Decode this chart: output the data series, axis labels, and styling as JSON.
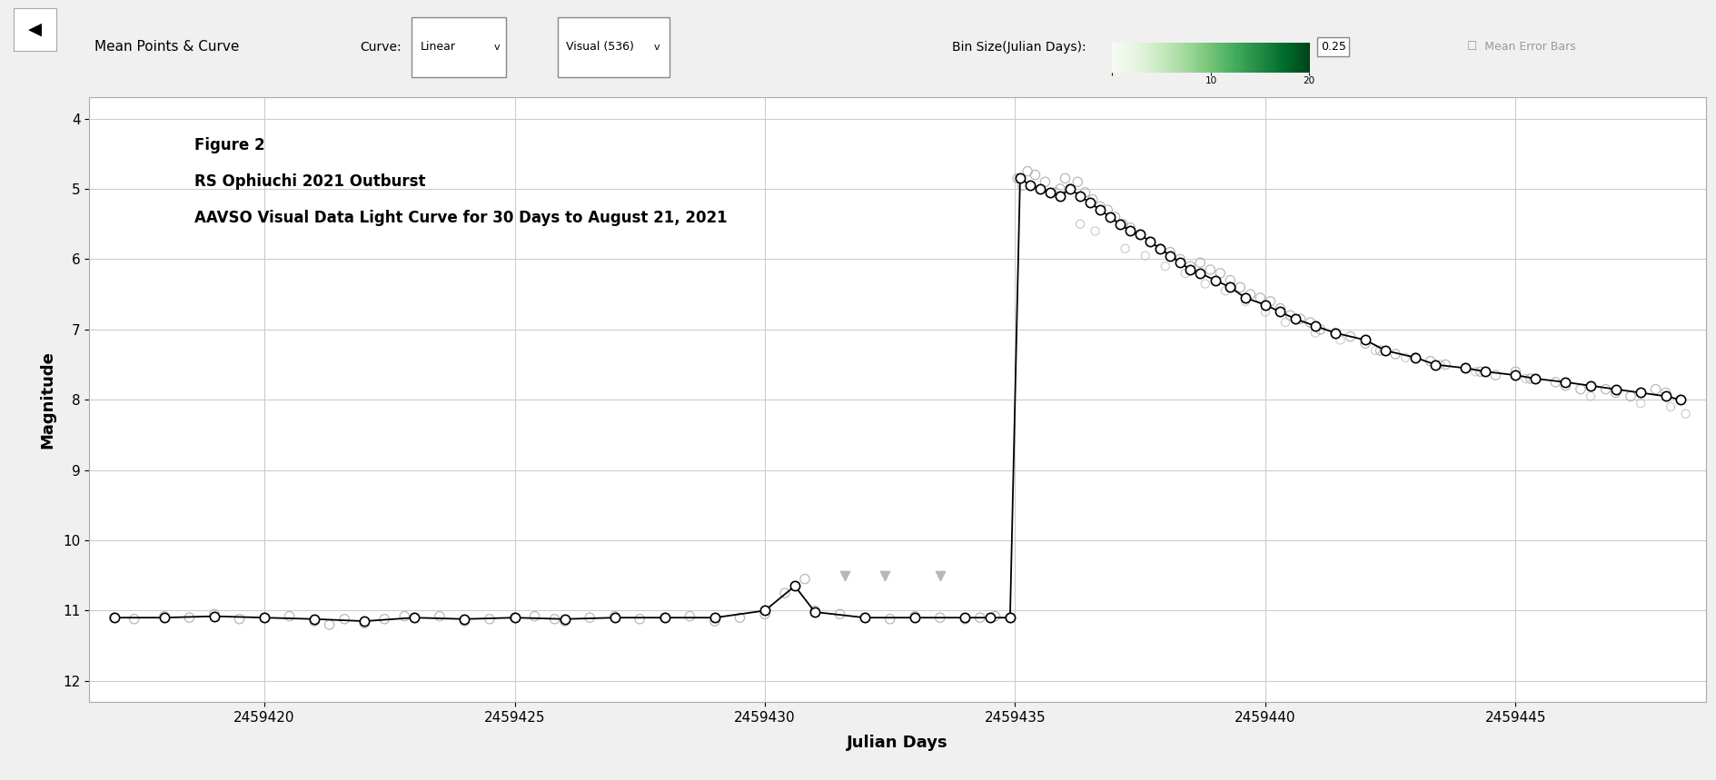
{
  "title_line1": "Figure 2",
  "title_line2": "RS Ophiuchi 2021 Outburst",
  "title_line3": "AAVSO Visual Data Light Curve for 30 Days to August 21, 2021",
  "xlabel": "Julian Days",
  "ylabel": "Magnitude",
  "xlim": [
    2459416.5,
    2459448.8
  ],
  "ylim": [
    12.3,
    3.7
  ],
  "xticks": [
    2459420,
    2459425,
    2459430,
    2459435,
    2459440,
    2459445
  ],
  "yticks": [
    4,
    5,
    6,
    7,
    8,
    9,
    10,
    11,
    12
  ],
  "background_color": "#f0f0f0",
  "plot_bg_color": "#ffffff",
  "grid_color": "#cccccc",
  "scatter_color": "#b8b8b8",
  "mean_line_color": "#000000",
  "mean_point_color": "#000000",
  "scatter_size": 55,
  "mean_size": 55,
  "figsize": [
    18.89,
    8.59
  ],
  "dpi": 100,
  "scatter_points": {
    "x": [
      2459417.0,
      2459417.4,
      2459418.0,
      2459418.5,
      2459419.0,
      2459419.5,
      2459420.0,
      2459420.5,
      2459421.0,
      2459421.3,
      2459421.6,
      2459422.0,
      2459422.4,
      2459422.8,
      2459423.0,
      2459423.5,
      2459424.0,
      2459424.5,
      2459425.0,
      2459425.4,
      2459425.8,
      2459426.0,
      2459426.5,
      2459427.0,
      2459427.5,
      2459428.0,
      2459428.5,
      2459429.0,
      2459429.5,
      2459430.0,
      2459430.4,
      2459430.8,
      2459431.0,
      2459431.5,
      2459432.0,
      2459432.5,
      2459433.0,
      2459433.5,
      2459434.0,
      2459434.3,
      2459434.6,
      2459434.9,
      2459435.05,
      2459435.15,
      2459435.25,
      2459435.4,
      2459435.6,
      2459435.8,
      2459435.9,
      2459436.0,
      2459436.1,
      2459436.25,
      2459436.4,
      2459436.55,
      2459436.7,
      2459436.85,
      2459437.0,
      2459437.15,
      2459437.3,
      2459437.5,
      2459437.7,
      2459437.9,
      2459438.1,
      2459438.3,
      2459438.5,
      2459438.7,
      2459438.9,
      2459439.1,
      2459439.3,
      2459439.5,
      2459439.7,
      2459439.9,
      2459440.1,
      2459440.3,
      2459440.5,
      2459440.7,
      2459440.9,
      2459441.1,
      2459441.4,
      2459441.7,
      2459442.0,
      2459442.3,
      2459442.6,
      2459443.0,
      2459443.3,
      2459443.6,
      2459444.0,
      2459444.3,
      2459444.6,
      2459445.0,
      2459445.3,
      2459445.8,
      2459446.0,
      2459446.3,
      2459446.8,
      2459447.0,
      2459447.3,
      2459447.8,
      2459448.0,
      2459448.3
    ],
    "y": [
      11.1,
      11.12,
      11.08,
      11.1,
      11.05,
      11.12,
      11.1,
      11.08,
      11.15,
      11.2,
      11.12,
      11.18,
      11.12,
      11.08,
      11.1,
      11.08,
      11.15,
      11.12,
      11.1,
      11.08,
      11.12,
      11.15,
      11.1,
      11.08,
      11.12,
      11.1,
      11.08,
      11.15,
      11.1,
      11.05,
      10.75,
      10.55,
      11.0,
      11.05,
      11.1,
      11.12,
      11.08,
      11.1,
      11.12,
      11.1,
      11.08,
      11.1,
      4.85,
      4.95,
      4.75,
      4.8,
      4.9,
      5.05,
      5.0,
      4.85,
      5.0,
      4.9,
      5.05,
      5.15,
      5.25,
      5.3,
      5.4,
      5.5,
      5.55,
      5.65,
      5.75,
      5.85,
      5.9,
      6.0,
      6.1,
      6.05,
      6.15,
      6.2,
      6.3,
      6.4,
      6.5,
      6.55,
      6.6,
      6.7,
      6.8,
      6.85,
      6.9,
      7.0,
      7.05,
      7.1,
      7.2,
      7.3,
      7.35,
      7.4,
      7.45,
      7.5,
      7.55,
      7.6,
      7.65,
      7.6,
      7.7,
      7.75,
      7.8,
      7.85,
      7.85,
      7.9,
      7.95,
      7.85,
      7.9,
      8.0
    ]
  },
  "scatter_extra": {
    "x": [
      2459436.3,
      2459436.6,
      2459437.2,
      2459437.6,
      2459438.0,
      2459438.4,
      2459438.8,
      2459439.2,
      2459439.6,
      2459440.0,
      2459440.4,
      2459441.0,
      2459441.5,
      2459442.2,
      2459442.8,
      2459443.5,
      2459444.2,
      2459445.2,
      2459446.5,
      2459447.5,
      2459448.1,
      2459448.4
    ],
    "y": [
      5.5,
      5.6,
      5.85,
      5.95,
      6.1,
      6.2,
      6.35,
      6.45,
      6.6,
      6.75,
      6.9,
      7.05,
      7.15,
      7.3,
      7.4,
      7.5,
      7.6,
      7.7,
      7.95,
      8.05,
      8.1,
      8.2
    ]
  },
  "upper_limit_triangles": {
    "x": [
      2459431.6,
      2459432.4,
      2459433.5
    ],
    "y": [
      10.5,
      10.5,
      10.5
    ]
  },
  "mean_points": {
    "x": [
      2459417.0,
      2459418.0,
      2459419.0,
      2459420.0,
      2459421.0,
      2459422.0,
      2459423.0,
      2459424.0,
      2459425.0,
      2459426.0,
      2459427.0,
      2459428.0,
      2459429.0,
      2459430.0,
      2459430.6,
      2459431.0,
      2459432.0,
      2459433.0,
      2459434.0,
      2459434.5,
      2459434.9,
      2459435.1,
      2459435.3,
      2459435.5,
      2459435.7,
      2459435.9,
      2459436.1,
      2459436.3,
      2459436.5,
      2459436.7,
      2459436.9,
      2459437.1,
      2459437.3,
      2459437.5,
      2459437.7,
      2459437.9,
      2459438.1,
      2459438.3,
      2459438.5,
      2459438.7,
      2459439.0,
      2459439.3,
      2459439.6,
      2459440.0,
      2459440.3,
      2459440.6,
      2459441.0,
      2459441.4,
      2459442.0,
      2459442.4,
      2459443.0,
      2459443.4,
      2459444.0,
      2459444.4,
      2459445.0,
      2459445.4,
      2459446.0,
      2459446.5,
      2459447.0,
      2459447.5,
      2459448.0,
      2459448.3
    ],
    "y": [
      11.1,
      11.1,
      11.08,
      11.1,
      11.12,
      11.15,
      11.1,
      11.12,
      11.1,
      11.12,
      11.1,
      11.1,
      11.1,
      11.0,
      10.65,
      11.02,
      11.1,
      11.1,
      11.1,
      11.1,
      11.1,
      4.85,
      4.95,
      5.0,
      5.05,
      5.1,
      5.0,
      5.1,
      5.2,
      5.3,
      5.4,
      5.5,
      5.6,
      5.65,
      5.75,
      5.85,
      5.95,
      6.05,
      6.15,
      6.2,
      6.3,
      6.4,
      6.55,
      6.65,
      6.75,
      6.85,
      6.95,
      7.05,
      7.15,
      7.3,
      7.4,
      7.5,
      7.55,
      7.6,
      7.65,
      7.7,
      7.75,
      7.8,
      7.85,
      7.9,
      7.95,
      8.0
    ]
  },
  "header_text": "Mean Points & Curve",
  "curve_label": "Linear",
  "visual_label": "Visual (536)",
  "bin_label": "Bin Size(Julian Days):",
  "bin_value": "0.25",
  "mean_error_label": "Mean Error Bars"
}
